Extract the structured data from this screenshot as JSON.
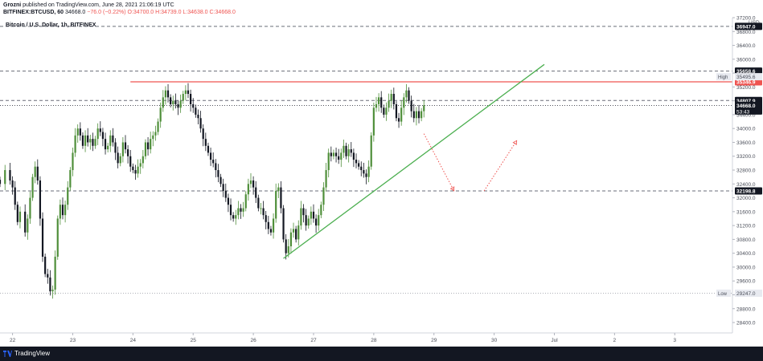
{
  "header": {
    "publisher": "Grozni",
    "published_line": " published on TradingView.com, June 28, 2021 21:06:19 UTC",
    "symbol_exchange": "BITFINEX:BTCUSD, 60",
    "last_price": "34668.0",
    "change": "−76.0 (−0.22%)",
    "open": "O:34700.0",
    "high": "H:34739.0",
    "low": "L:34638.0",
    "close": "C:34668.0",
    "chart_title": "Bitcoin / U.S. Dollar, 1h, BITFINEX"
  },
  "footer": {
    "brand": "TradingView"
  },
  "colors": {
    "up_candle": "#4f8f3a",
    "down_candle": "#131722",
    "resistance_line": "#ef5350",
    "trend_line": "#4caf50",
    "projection": "#ef5350",
    "grid_dash": "#9598a1"
  },
  "chart_data": {
    "type": "candlestick",
    "symbol": "BITFINEX:BTCUSD",
    "interval": "1h",
    "currency": "USD",
    "ylim": [
      28100,
      37200
    ],
    "y_ticks": [
      28400,
      28800,
      29200,
      29600,
      30000,
      30400,
      30800,
      31200,
      31600,
      32000,
      32400,
      32800,
      33200,
      33600,
      34000,
      34400,
      34800,
      35200,
      35600,
      36000,
      36400,
      36800,
      37200
    ],
    "y_tick_labels": [
      "28400.0",
      "28800.0",
      "29200.0",
      "29600.0",
      "30000.0",
      "30400.0",
      "30800.0",
      "31200.0",
      "31600.0",
      "32000.0",
      "32400.0",
      "32800.0",
      "33200.0",
      "33600.0",
      "34000.0",
      "34400.0",
      "34800.0",
      "35200.0",
      "35600.0",
      "36000.0",
      "36400.0",
      "36800.0",
      "37200.0"
    ],
    "x_ticks": [
      {
        "label": "22",
        "t": 0
      },
      {
        "label": "23",
        "t": 24
      },
      {
        "label": "24",
        "t": 48
      },
      {
        "label": "25",
        "t": 72
      },
      {
        "label": "26",
        "t": 96
      },
      {
        "label": "27",
        "t": 120
      },
      {
        "label": "28",
        "t": 144
      },
      {
        "label": "29",
        "t": 168
      },
      {
        "label": "30",
        "t": 192
      },
      {
        "label": "Jul",
        "t": 216
      },
      {
        "label": "2",
        "t": 240
      },
      {
        "label": "3",
        "t": 264
      }
    ],
    "x_range_hours": [
      -5,
      287
    ],
    "levels": [
      {
        "value": 36947.0,
        "label": "36947.0",
        "kind": "dashed"
      },
      {
        "value": 35658.6,
        "label": "35658.6",
        "kind": "dashed"
      },
      {
        "value": 34807.9,
        "label": "34807.9",
        "kind": "dashed"
      },
      {
        "value": 32198.8,
        "label": "32198.8",
        "kind": "dashed"
      },
      {
        "value": 35346.9,
        "label": "35346.9",
        "kind": "resistance"
      },
      {
        "value": 34668.0,
        "label": "34668.0",
        "kind": "current",
        "timer": "53:43"
      }
    ],
    "markers": [
      {
        "value": 35495.6,
        "tag": "High",
        "label": "35495.6"
      },
      {
        "value": 29247.0,
        "tag": "Low",
        "label": "29247.0"
      }
    ],
    "resistance": {
      "t_start": 47,
      "t_end": 287,
      "value": 35346.9
    },
    "trend_line": {
      "t1": 108,
      "v1": 30250,
      "t2": 212,
      "v2": 35850
    },
    "projection": [
      {
        "t": 164,
        "v": 33850
      },
      {
        "t": 176,
        "v": 32200
      },
      {
        "t": 188,
        "v": 32200
      },
      {
        "t": 201,
        "v": 33650
      }
    ],
    "price_series": [
      [
        -5,
        32400
      ],
      [
        -3,
        32800
      ],
      [
        -1,
        32500
      ],
      [
        0,
        32300
      ],
      [
        1,
        31800
      ],
      [
        2,
        31300
      ],
      [
        3,
        31600
      ],
      [
        5,
        31000
      ],
      [
        6,
        31400
      ],
      [
        7,
        32000
      ],
      [
        8,
        32600
      ],
      [
        9,
        32900
      ],
      [
        10,
        32500
      ],
      [
        11,
        31400
      ],
      [
        12,
        30300
      ],
      [
        13,
        29800
      ],
      [
        14,
        29700
      ],
      [
        15,
        29300
      ],
      [
        16,
        29350
      ],
      [
        17,
        30300
      ],
      [
        18,
        31400
      ],
      [
        19,
        31800
      ],
      [
        20,
        31500
      ],
      [
        21,
        31800
      ],
      [
        22,
        32300
      ],
      [
        23,
        32800
      ],
      [
        24,
        33300
      ],
      [
        25,
        33800
      ],
      [
        26,
        34000
      ],
      [
        27,
        33800
      ],
      [
        28,
        33500
      ],
      [
        29,
        33800
      ],
      [
        30,
        33600
      ],
      [
        31,
        33700
      ],
      [
        32,
        33500
      ],
      [
        33,
        33700
      ],
      [
        34,
        34000
      ],
      [
        35,
        33900
      ],
      [
        36,
        33700
      ],
      [
        37,
        33400
      ],
      [
        38,
        33500
      ],
      [
        39,
        33800
      ],
      [
        40,
        33600
      ],
      [
        41,
        33300
      ],
      [
        42,
        33000
      ],
      [
        43,
        33200
      ],
      [
        44,
        33600
      ],
      [
        45,
        33400
      ],
      [
        46,
        33200
      ],
      [
        47,
        32900
      ],
      [
        48,
        32800
      ],
      [
        49,
        32700
      ],
      [
        50,
        32900
      ],
      [
        51,
        33000
      ],
      [
        52,
        33200
      ],
      [
        53,
        33600
      ],
      [
        54,
        33400
      ],
      [
        55,
        33700
      ],
      [
        56,
        33800
      ],
      [
        57,
        33900
      ],
      [
        58,
        34200
      ],
      [
        59,
        34600
      ],
      [
        60,
        34900
      ],
      [
        61,
        35100
      ],
      [
        62,
        34900
      ],
      [
        63,
        34700
      ],
      [
        64,
        34800
      ],
      [
        65,
        34700
      ],
      [
        66,
        34600
      ],
      [
        67,
        34800
      ],
      [
        68,
        35000
      ],
      [
        69,
        35100
      ],
      [
        70,
        35000
      ],
      [
        71,
        34700
      ],
      [
        72,
        34600
      ],
      [
        73,
        34400
      ],
      [
        74,
        34300
      ],
      [
        75,
        34000
      ],
      [
        76,
        33700
      ],
      [
        77,
        33500
      ],
      [
        78,
        33300
      ],
      [
        79,
        33100
      ],
      [
        80,
        33000
      ],
      [
        81,
        32800
      ],
      [
        82,
        32600
      ],
      [
        83,
        32400
      ],
      [
        84,
        32200
      ],
      [
        85,
        32000
      ],
      [
        86,
        31800
      ],
      [
        87,
        31500
      ],
      [
        88,
        31400
      ],
      [
        89,
        31500
      ],
      [
        90,
        31700
      ],
      [
        91,
        31600
      ],
      [
        92,
        31700
      ],
      [
        93,
        32100
      ],
      [
        94,
        32400
      ],
      [
        95,
        32500
      ],
      [
        96,
        32300
      ],
      [
        97,
        32000
      ],
      [
        98,
        31700
      ],
      [
        99,
        31700
      ],
      [
        100,
        31500
      ],
      [
        101,
        31300
      ],
      [
        102,
        31100
      ],
      [
        103,
        31000
      ],
      [
        104,
        31400
      ],
      [
        105,
        32200
      ],
      [
        106,
        32300
      ],
      [
        107,
        31700
      ],
      [
        108,
        30800
      ],
      [
        109,
        30400
      ],
      [
        110,
        30600
      ],
      [
        111,
        31000
      ],
      [
        112,
        31100
      ],
      [
        113,
        30800
      ],
      [
        114,
        31200
      ],
      [
        115,
        31700
      ],
      [
        116,
        31500
      ],
      [
        117,
        31200
      ],
      [
        118,
        31400
      ],
      [
        119,
        31600
      ],
      [
        120,
        31400
      ],
      [
        121,
        31200
      ],
      [
        122,
        31500
      ],
      [
        123,
        31800
      ],
      [
        124,
        32300
      ],
      [
        125,
        32800
      ],
      [
        126,
        33300
      ],
      [
        127,
        33200
      ],
      [
        128,
        33300
      ],
      [
        129,
        33200
      ],
      [
        130,
        33100
      ],
      [
        131,
        33300
      ],
      [
        132,
        33500
      ],
      [
        133,
        33200
      ],
      [
        134,
        33400
      ],
      [
        135,
        33300
      ],
      [
        136,
        33100
      ],
      [
        137,
        33000
      ],
      [
        138,
        32900
      ],
      [
        139,
        32800
      ],
      [
        140,
        32700
      ],
      [
        141,
        32600
      ],
      [
        142,
        32900
      ],
      [
        143,
        33800
      ],
      [
        144,
        34600
      ],
      [
        145,
        34700
      ],
      [
        146,
        34900
      ],
      [
        147,
        34600
      ],
      [
        148,
        34400
      ],
      [
        149,
        34600
      ],
      [
        150,
        34800
      ],
      [
        151,
        35000
      ],
      [
        152,
        34700
      ],
      [
        153,
        34300
      ],
      [
        154,
        34200
      ],
      [
        155,
        34600
      ],
      [
        156,
        34900
      ],
      [
        157,
        35100
      ],
      [
        158,
        34800
      ],
      [
        159,
        34500
      ],
      [
        160,
        34300
      ],
      [
        161,
        34500
      ],
      [
        162,
        34300
      ],
      [
        163,
        34500
      ],
      [
        164,
        34668
      ]
    ]
  }
}
